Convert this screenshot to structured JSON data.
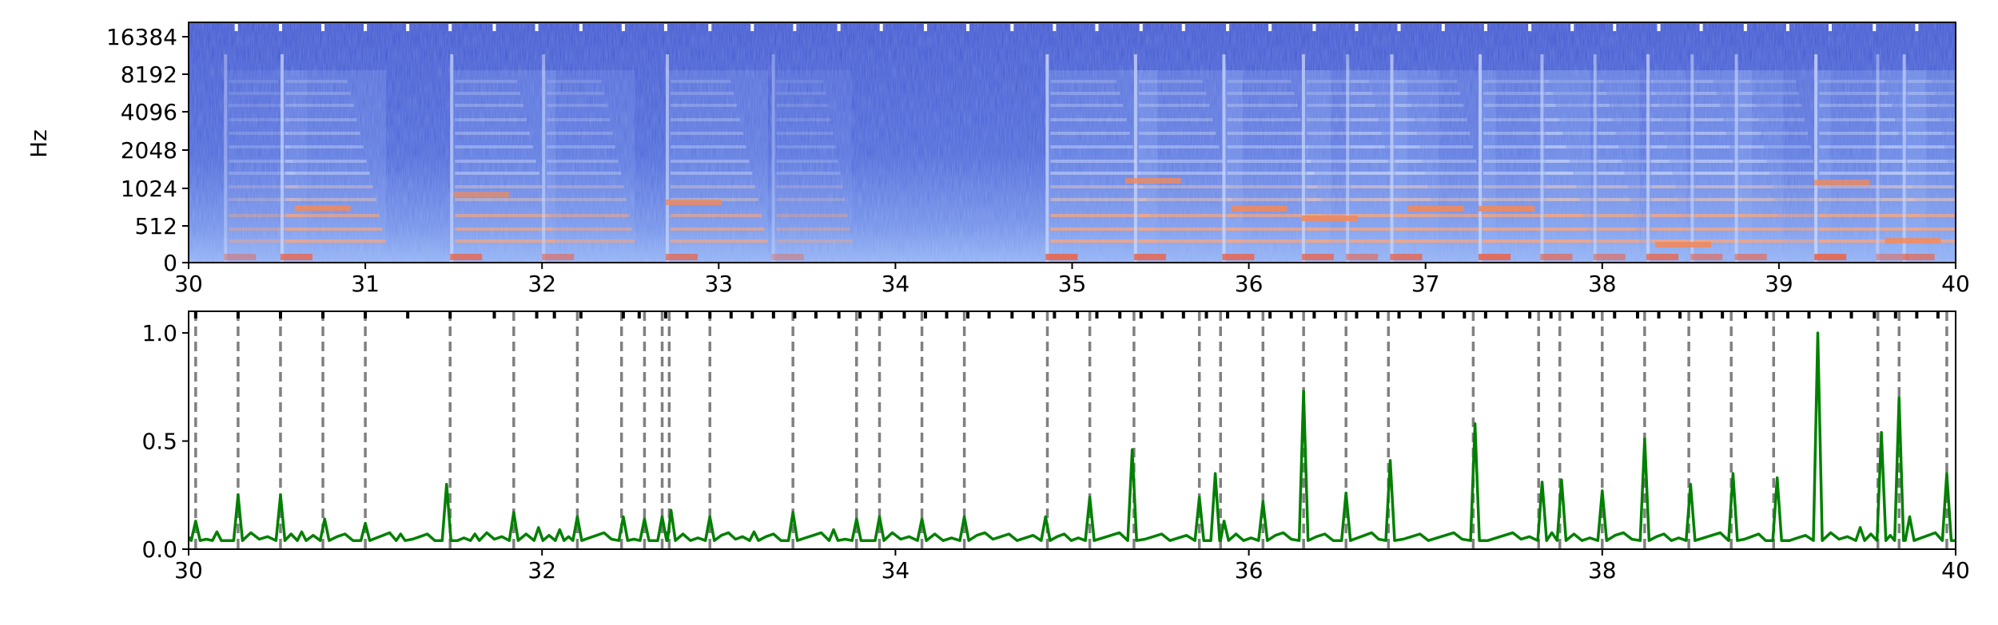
{
  "chart_data": [
    {
      "type": "heatmap",
      "title": "",
      "xlabel": "",
      "ylabel": "Hz",
      "xlim": [
        30,
        40
      ],
      "ylim": [
        0,
        22050
      ],
      "yscale": "log (symlog)",
      "x_ticks": [
        30,
        31,
        32,
        33,
        34,
        35,
        36,
        37,
        38,
        39,
        40
      ],
      "y_ticks": [
        "0",
        "512",
        "1024",
        "2048",
        "4096",
        "8192",
        "16384"
      ],
      "colormap": "coolwarm",
      "beat_markers": [
        30.27,
        30.52,
        30.76,
        31.0,
        31.24,
        31.48,
        31.73,
        31.97,
        32.22,
        32.46,
        32.7,
        32.95,
        33.19,
        33.43,
        33.68,
        33.92,
        34.17,
        34.41,
        34.66,
        34.9,
        35.14,
        35.39,
        35.63,
        35.88,
        36.12,
        36.37,
        36.61,
        36.85,
        37.1,
        37.34,
        37.59,
        37.83,
        38.07,
        38.32,
        38.56,
        38.81,
        39.05,
        39.29,
        39.54,
        39.78
      ],
      "onset_events": [
        {
          "t": 30.2,
          "level": 0.55
        },
        {
          "t": 30.52,
          "level": 0.9
        },
        {
          "t": 31.48,
          "level": 0.9
        },
        {
          "t": 32.0,
          "level": 0.7
        },
        {
          "t": 32.7,
          "level": 0.85
        },
        {
          "t": 33.3,
          "level": 0.5
        },
        {
          "t": 34.85,
          "level": 1.0
        },
        {
          "t": 35.35,
          "level": 0.95
        },
        {
          "t": 35.85,
          "level": 0.95
        },
        {
          "t": 36.3,
          "level": 0.9
        },
        {
          "t": 36.55,
          "level": 0.7
        },
        {
          "t": 36.8,
          "level": 0.9
        },
        {
          "t": 37.3,
          "level": 1.0
        },
        {
          "t": 37.65,
          "level": 0.8
        },
        {
          "t": 37.95,
          "level": 0.7
        },
        {
          "t": 38.25,
          "level": 0.9
        },
        {
          "t": 38.5,
          "level": 0.7
        },
        {
          "t": 38.75,
          "level": 0.75
        },
        {
          "t": 39.2,
          "level": 1.0
        },
        {
          "t": 39.55,
          "level": 0.6
        },
        {
          "t": 39.7,
          "level": 0.8
        }
      ]
    },
    {
      "type": "line",
      "title": "",
      "xlabel": "",
      "ylabel": "",
      "xlim": [
        30,
        40
      ],
      "ylim": [
        0,
        1.1
      ],
      "x_ticks": [
        30,
        32,
        34,
        36,
        38,
        40
      ],
      "y_ticks": [
        "0.0",
        "0.5",
        "1.0"
      ],
      "line_color": "#008000",
      "baseline": 0.04,
      "series": [
        {
          "points": [
            [
              30.04,
              0.13
            ],
            [
              30.16,
              0.08
            ],
            [
              30.28,
              0.25
            ],
            [
              30.52,
              0.25
            ],
            [
              30.64,
              0.08
            ],
            [
              30.77,
              0.14
            ],
            [
              31.0,
              0.12
            ],
            [
              31.2,
              0.07
            ],
            [
              31.46,
              0.3
            ],
            [
              31.62,
              0.07
            ],
            [
              31.84,
              0.17
            ],
            [
              31.98,
              0.1
            ],
            [
              32.1,
              0.09
            ],
            [
              32.2,
              0.15
            ],
            [
              32.46,
              0.15
            ],
            [
              32.58,
              0.14
            ],
            [
              32.68,
              0.15
            ],
            [
              32.73,
              0.18
            ],
            [
              32.95,
              0.15
            ],
            [
              33.2,
              0.08
            ],
            [
              33.42,
              0.17
            ],
            [
              33.65,
              0.09
            ],
            [
              33.78,
              0.14
            ],
            [
              33.91,
              0.15
            ],
            [
              34.15,
              0.14
            ],
            [
              34.39,
              0.15
            ],
            [
              34.85,
              0.15
            ],
            [
              35.1,
              0.24
            ],
            [
              35.34,
              0.46
            ],
            [
              35.72,
              0.24
            ],
            [
              35.81,
              0.35
            ],
            [
              35.86,
              0.13
            ],
            [
              36.08,
              0.22
            ],
            [
              36.31,
              0.73
            ],
            [
              36.55,
              0.26
            ],
            [
              36.8,
              0.41
            ],
            [
              37.28,
              0.58
            ],
            [
              37.66,
              0.31
            ],
            [
              37.77,
              0.32
            ],
            [
              38.0,
              0.27
            ],
            [
              38.24,
              0.51
            ],
            [
              38.5,
              0.3
            ],
            [
              38.74,
              0.35
            ],
            [
              38.99,
              0.33
            ],
            [
              39.22,
              1.0
            ],
            [
              39.46,
              0.1
            ],
            [
              39.58,
              0.54
            ],
            [
              39.68,
              0.7
            ],
            [
              39.74,
              0.15
            ],
            [
              39.95,
              0.35
            ]
          ]
        }
      ],
      "dashed_lines_color": "#808080",
      "dashed_lines": [
        30.04,
        30.28,
        30.52,
        30.76,
        31.0,
        31.48,
        31.84,
        32.2,
        32.45,
        32.58,
        32.68,
        32.72,
        32.95,
        33.42,
        33.78,
        33.91,
        34.15,
        34.39,
        34.86,
        35.1,
        35.35,
        35.72,
        35.84,
        36.08,
        36.31,
        36.55,
        36.79,
        37.27,
        37.64,
        37.76,
        38.0,
        38.24,
        38.49,
        38.73,
        38.97,
        39.56,
        39.68,
        39.95
      ],
      "top_tick_marks": [
        30.04,
        30.28,
        30.52,
        30.76,
        31.0,
        31.24,
        31.48,
        31.73,
        31.97,
        32.07,
        32.22,
        32.46,
        32.55,
        32.7,
        32.82,
        32.95,
        33.07,
        33.19,
        33.31,
        33.43,
        33.55,
        33.68,
        33.8,
        33.92,
        34.05,
        34.17,
        34.29,
        34.41,
        34.53,
        34.66,
        34.78,
        34.9,
        35.03,
        35.14,
        35.27,
        35.39,
        35.51,
        35.63,
        35.76,
        35.88,
        36.0,
        36.12,
        36.24,
        36.37,
        36.49,
        36.61,
        36.73,
        36.85,
        36.97,
        37.1,
        37.22,
        37.34,
        37.46,
        37.59,
        37.71,
        37.83,
        37.95,
        38.07,
        38.2,
        38.32,
        38.44,
        38.56,
        38.68,
        38.81,
        38.93,
        39.05,
        39.17,
        39.29,
        39.41,
        39.54,
        39.66,
        39.78,
        39.9
      ]
    }
  ]
}
